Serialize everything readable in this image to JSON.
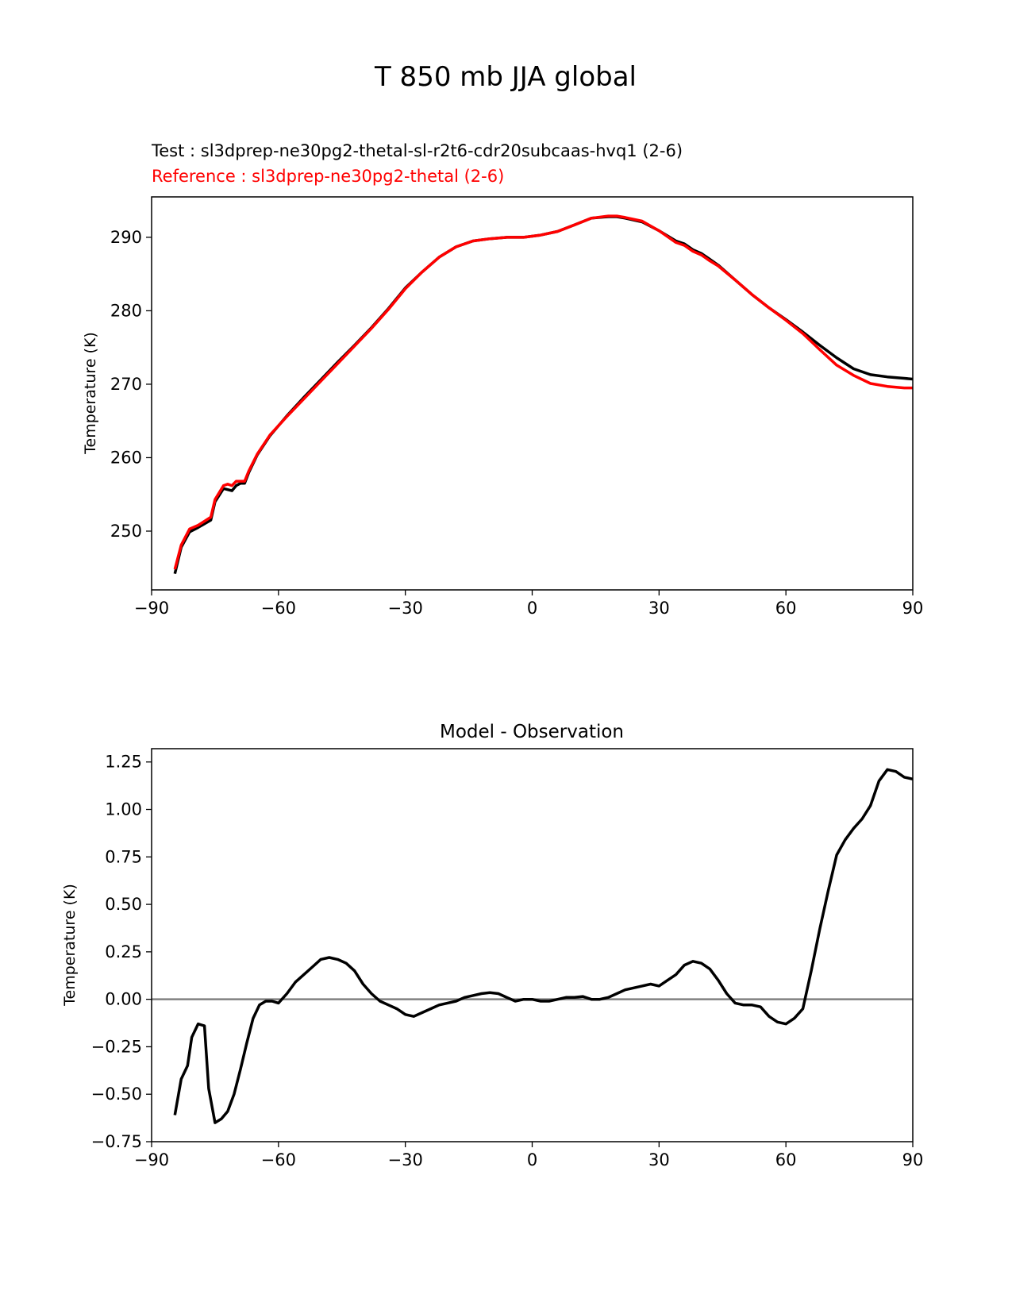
{
  "figure": {
    "title": "T 850 mb JJA global"
  },
  "chart_data": [
    {
      "type": "line",
      "test_label": "Test : sl3dprep-ne30pg2-thetal-sl-r2t6-cdr20subcaas-hvq1 (2-6)",
      "reference_label": "Reference : sl3dprep-ne30pg2-thetal (2-6)",
      "xlabel": "",
      "ylabel": "Temperature (K)",
      "xlim": [
        -90,
        90
      ],
      "ylim": [
        242,
        295.5
      ],
      "xticks": [
        -90,
        -60,
        -30,
        0,
        30,
        60,
        90
      ],
      "xtick_labels": [
        "−90",
        "−60",
        "−30",
        "0",
        "30",
        "60",
        "90"
      ],
      "yticks": [
        250,
        260,
        270,
        280,
        290
      ],
      "ytick_labels": [
        "250",
        "260",
        "270",
        "280",
        "290"
      ],
      "series": [
        {
          "name": "Test",
          "color": "#000000",
          "x": [
            -84.5,
            -83,
            -81,
            -79,
            -76,
            -75,
            -73,
            -71,
            -70,
            -69,
            -68,
            -67,
            -65,
            -62,
            -58,
            -54,
            -50,
            -46,
            -42,
            -38,
            -34,
            -30,
            -26,
            -22,
            -18,
            -14,
            -10,
            -6,
            -2,
            2,
            6,
            10,
            14,
            18,
            20,
            22,
            26,
            30,
            34,
            36,
            38,
            40,
            42,
            44,
            48,
            52,
            56,
            60,
            64,
            68,
            72,
            76,
            80,
            84,
            88,
            90
          ],
          "values": [
            244.2,
            247.8,
            249.9,
            250.5,
            251.5,
            254,
            255.8,
            255.5,
            256.2,
            256.5,
            256.5,
            258,
            260.4,
            263,
            265.7,
            268.2,
            270.6,
            273,
            275.3,
            277.7,
            280.3,
            283.1,
            285.3,
            287.3,
            288.7,
            289.5,
            289.8,
            290,
            290,
            290.3,
            290.8,
            291.7,
            292.6,
            292.8,
            292.8,
            292.6,
            292.1,
            290.9,
            289.5,
            289.1,
            288.3,
            287.8,
            287,
            286.2,
            284.2,
            282.2,
            280.4,
            278.8,
            277.1,
            275.3,
            273.6,
            272.1,
            271.3,
            271,
            270.8,
            270.7
          ]
        },
        {
          "name": "Reference",
          "color": "#ff0000",
          "x": [
            -84.5,
            -83,
            -81,
            -79,
            -76,
            -75,
            -73,
            -72,
            -71,
            -70,
            -69,
            -68,
            -67,
            -65,
            -62,
            -58,
            -54,
            -50,
            -46,
            -42,
            -38,
            -34,
            -30,
            -26,
            -22,
            -18,
            -14,
            -10,
            -6,
            -2,
            2,
            6,
            10,
            14,
            18,
            20,
            22,
            26,
            30,
            34,
            36,
            38,
            40,
            42,
            44,
            48,
            52,
            56,
            60,
            64,
            68,
            72,
            76,
            80,
            84,
            88,
            90
          ],
          "values": [
            244.8,
            248.1,
            250.3,
            250.8,
            251.9,
            254.3,
            256.2,
            256.4,
            256.2,
            256.8,
            256.8,
            256.8,
            258.2,
            260.5,
            263.1,
            265.6,
            268,
            270.4,
            272.8,
            275.2,
            277.6,
            280.2,
            283,
            285.3,
            287.3,
            288.7,
            289.5,
            289.8,
            290,
            290,
            290.3,
            290.8,
            291.7,
            292.6,
            292.9,
            292.9,
            292.7,
            292.2,
            290.9,
            289.3,
            288.9,
            288.1,
            287.6,
            286.8,
            286.1,
            284.2,
            282.2,
            280.4,
            278.7,
            276.9,
            274.7,
            272.6,
            271.2,
            270.1,
            269.7,
            269.5,
            269.5
          ]
        }
      ]
    },
    {
      "type": "line",
      "title": "Model - Observation",
      "xlabel": "",
      "ylabel": "Temperature (K)",
      "xlim": [
        -90,
        90
      ],
      "ylim": [
        -0.75,
        1.32
      ],
      "xticks": [
        -90,
        -60,
        -30,
        0,
        30,
        60,
        90
      ],
      "xtick_labels": [
        "−90",
        "−60",
        "−30",
        "0",
        "30",
        "60",
        "90"
      ],
      "yticks": [
        -0.75,
        -0.5,
        -0.25,
        0,
        0.25,
        0.5,
        0.75,
        1.0,
        1.25
      ],
      "ytick_labels": [
        "−0.75",
        "−0.50",
        "−0.25",
        "0.00",
        "0.25",
        "0.50",
        "0.75",
        "1.00",
        "1.25"
      ],
      "zero_line_color": "#808080",
      "series": [
        {
          "name": "Model - Observation",
          "color": "#000000",
          "x": [
            -84.5,
            -83,
            -81.5,
            -80.5,
            -79,
            -77.5,
            -76.5,
            -75,
            -73.5,
            -72,
            -70.5,
            -69,
            -67.5,
            -66,
            -64.5,
            -63,
            -61.5,
            -60,
            -58,
            -56,
            -54,
            -52,
            -50,
            -48,
            -46,
            -44,
            -42,
            -40,
            -38,
            -36,
            -34,
            -32,
            -30,
            -28,
            -26,
            -24,
            -22,
            -20,
            -18,
            -16,
            -14,
            -12,
            -10,
            -8,
            -6,
            -4,
            -2,
            0,
            2,
            4,
            6,
            8,
            10,
            12,
            14,
            16,
            18,
            20,
            22,
            24,
            26,
            28,
            30,
            32,
            34,
            36,
            38,
            40,
            42,
            44,
            46,
            48,
            50,
            52,
            54,
            56,
            58,
            60,
            62,
            64,
            66,
            68,
            70,
            72,
            74,
            76,
            78,
            80,
            82,
            84,
            86,
            88,
            90
          ],
          "values": [
            -0.61,
            -0.42,
            -0.35,
            -0.2,
            -0.13,
            -0.14,
            -0.47,
            -0.65,
            -0.63,
            -0.59,
            -0.5,
            -0.37,
            -0.23,
            -0.1,
            -0.03,
            -0.01,
            -0.01,
            -0.02,
            0.03,
            0.09,
            0.13,
            0.17,
            0.21,
            0.22,
            0.21,
            0.19,
            0.15,
            0.08,
            0.03,
            -0.01,
            -0.03,
            -0.05,
            -0.08,
            -0.09,
            -0.07,
            -0.05,
            -0.03,
            -0.02,
            -0.01,
            0.01,
            0.02,
            0.03,
            0.035,
            0.03,
            0.01,
            -0.01,
            0.0,
            0.0,
            -0.01,
            -0.01,
            0.0,
            0.01,
            0.01,
            0.015,
            0.0,
            0.0,
            0.01,
            0.03,
            0.05,
            0.06,
            0.07,
            0.08,
            0.07,
            0.1,
            0.13,
            0.18,
            0.2,
            0.19,
            0.16,
            0.1,
            0.03,
            -0.02,
            -0.03,
            -0.03,
            -0.04,
            -0.09,
            -0.12,
            -0.13,
            -0.1,
            -0.05,
            0.15,
            0.37,
            0.57,
            0.76,
            0.84,
            0.9,
            0.95,
            1.02,
            1.15,
            1.21,
            1.2,
            1.17,
            1.16
          ]
        }
      ]
    }
  ]
}
